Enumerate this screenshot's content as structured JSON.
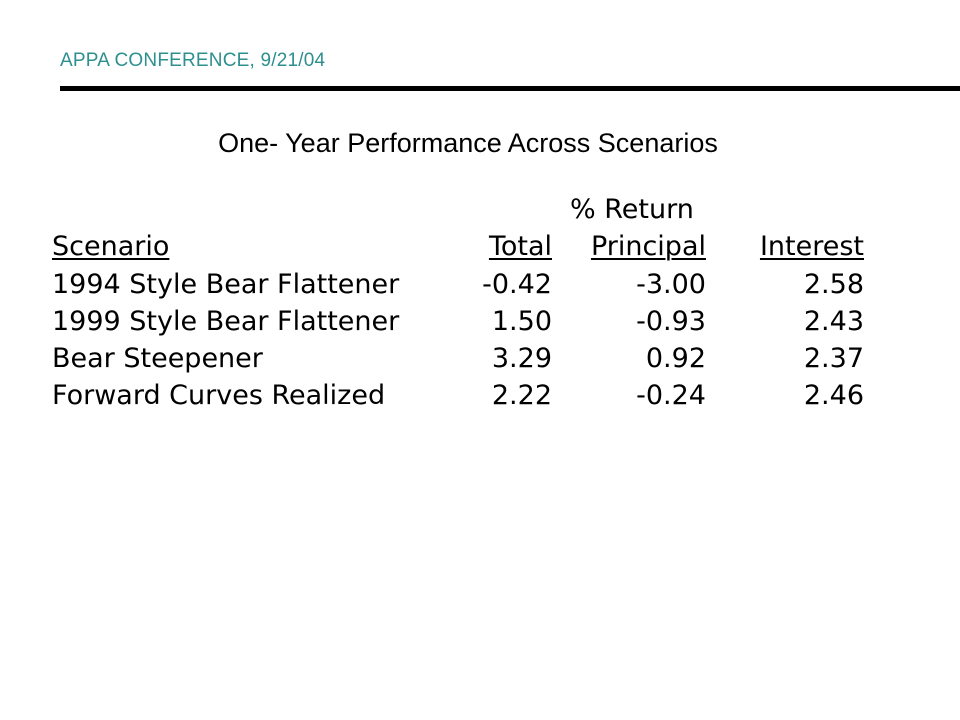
{
  "header": {
    "label": "APPA CONFERENCE, 9/21/04"
  },
  "slide": {
    "title": "One- Year Performance Across Scenarios"
  },
  "table": {
    "group_label": "% Return",
    "columns": {
      "scenario": "Scenario",
      "total": "Total",
      "principal": "Principal",
      "interest": "Interest"
    },
    "rows": [
      {
        "scenario": "1994 Style Bear Flattener",
        "total": "-0.42",
        "principal": "-3.00",
        "interest": "2.58"
      },
      {
        "scenario": "1999 Style Bear Flattener",
        "total": "1.50",
        "principal": "-0.93",
        "interest": "2.43"
      },
      {
        "scenario": "Bear Steepener",
        "total": "3.29",
        "principal": "0.92",
        "interest": "2.37"
      },
      {
        "scenario": "Forward Curves Realized",
        "total": "2.22",
        "principal": "-0.24",
        "interest": "2.46"
      }
    ]
  },
  "colors": {
    "header_text": "#2e8f8f",
    "rule": "#000000",
    "text": "#000000",
    "background": "#ffffff"
  }
}
